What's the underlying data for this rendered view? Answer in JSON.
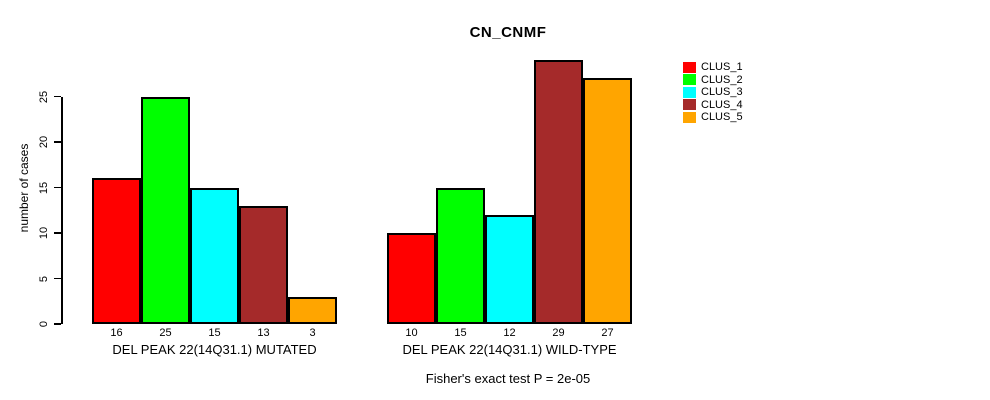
{
  "title": "CN_CNMF",
  "footer": "Fisher's exact test P = 2e-05",
  "chart_data": {
    "type": "bar",
    "title": "CN_CNMF",
    "ylabel": "number of cases",
    "ylim": [
      0,
      29
    ],
    "yticks": [
      0,
      5,
      10,
      15,
      20,
      25
    ],
    "grid": false,
    "legend_position": "right",
    "series_labels": [
      "CLUS_1",
      "CLUS_2",
      "CLUS_3",
      "CLUS_4",
      "CLUS_5"
    ],
    "colors": [
      "#FF0000",
      "#00FF00",
      "#00FFFF",
      "#A52A2A",
      "#FFA500"
    ],
    "groups": [
      {
        "label": "DEL PEAK 22(14Q31.1) MUTATED",
        "values": [
          16,
          25,
          15,
          13,
          3
        ]
      },
      {
        "label": "DEL PEAK 22(14Q31.1) WILD-TYPE",
        "values": [
          10,
          15,
          12,
          29,
          27
        ]
      }
    ],
    "annotation": "Fisher's exact test P = 2e-05"
  }
}
